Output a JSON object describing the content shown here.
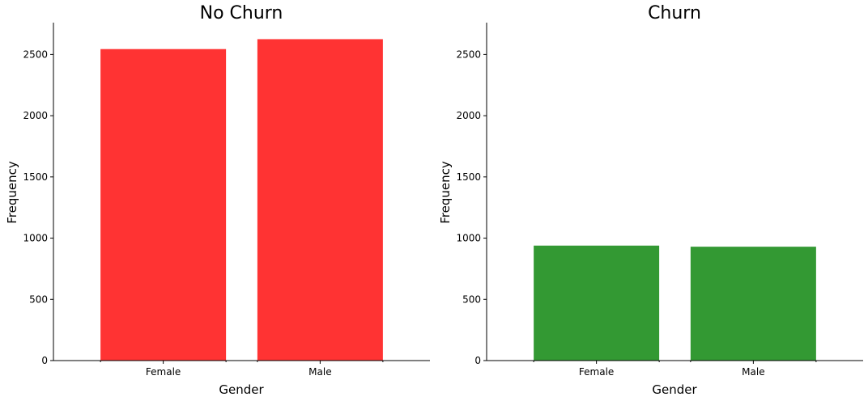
{
  "chart_data": [
    {
      "type": "bar",
      "title": "No Churn",
      "xlabel": "Gender",
      "ylabel": "Frequency",
      "categories": [
        "Female",
        "Male"
      ],
      "values": [
        2544,
        2625
      ],
      "ylim": [
        0,
        2760
      ],
      "yticks": [
        0,
        500,
        1000,
        1500,
        2000,
        2500
      ],
      "bar_color": "#ff3333",
      "grid": false
    },
    {
      "type": "bar",
      "title": "Churn",
      "xlabel": "Gender",
      "ylabel": "Frequency",
      "categories": [
        "Female",
        "Male"
      ],
      "values": [
        939,
        930
      ],
      "ylim": [
        0,
        2760
      ],
      "yticks": [
        0,
        500,
        1000,
        1500,
        2000,
        2500
      ],
      "bar_color": "#339933",
      "grid": false
    }
  ]
}
